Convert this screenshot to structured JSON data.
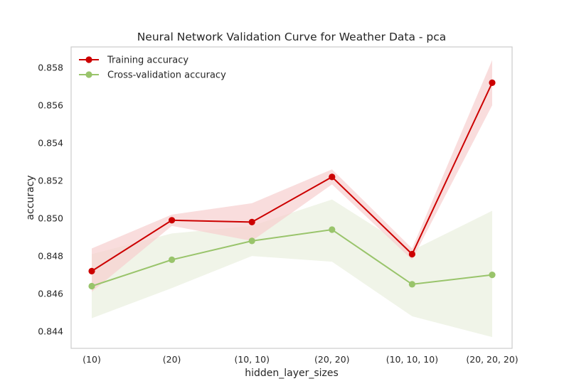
{
  "chart_data": {
    "type": "line",
    "title": "Neural Network Validation Curve for Weather Data - pca",
    "xlabel": "hidden_layer_sizes",
    "ylabel": "accuracy",
    "categories": [
      "(10)",
      "(20)",
      "(10, 10)",
      "(20, 20)",
      "(10, 10, 10)",
      "(20, 20, 20)"
    ],
    "ylim": [
      0.8431,
      0.8591
    ],
    "yticks": [
      "0.844",
      "0.846",
      "0.848",
      "0.850",
      "0.852",
      "0.854",
      "0.856",
      "0.858"
    ],
    "grid": false,
    "legend_position": "top-left",
    "series": [
      {
        "name": "Training accuracy",
        "color": "#cc0000",
        "band_color": "#f6cfcf",
        "values": [
          0.8472,
          0.8499,
          0.8498,
          0.8522,
          0.8481,
          0.8572
        ],
        "band_lower": [
          0.8461,
          0.8496,
          0.8488,
          0.8518,
          0.8478,
          0.856
        ],
        "band_upper": [
          0.8484,
          0.8502,
          0.8508,
          0.8526,
          0.8484,
          0.8584
        ]
      },
      {
        "name": "Cross-validation accuracy",
        "color": "#99c46b",
        "band_color": "#e9f0de",
        "values": [
          0.8464,
          0.8478,
          0.8488,
          0.8494,
          0.8465,
          0.847
        ],
        "band_lower": [
          0.8447,
          0.8463,
          0.848,
          0.8477,
          0.8448,
          0.8437
        ],
        "band_upper": [
          0.8481,
          0.8492,
          0.8496,
          0.851,
          0.8483,
          0.8504
        ]
      }
    ]
  }
}
